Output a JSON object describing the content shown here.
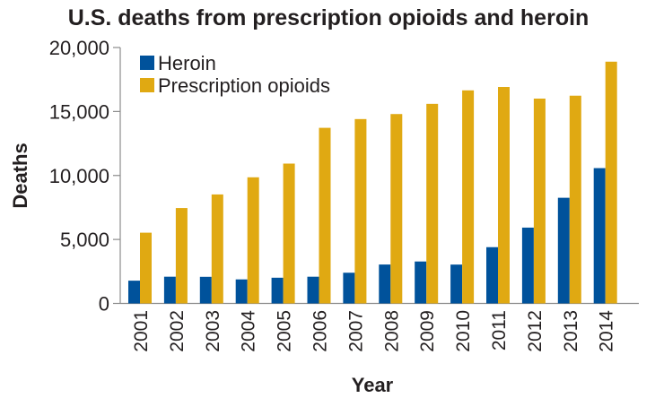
{
  "chart_data": {
    "type": "bar",
    "title": "U.S. deaths from prescription opioids and heroin",
    "xlabel": "Year",
    "ylabel": "Deaths",
    "ylim": [
      0,
      20000
    ],
    "yticks": [
      0,
      5000,
      10000,
      15000,
      20000
    ],
    "ytick_labels": [
      "0",
      "5,000",
      "10,000",
      "15,000",
      "20,000"
    ],
    "grid": false,
    "legend_position": "top-left",
    "categories": [
      "2001",
      "2002",
      "2003",
      "2004",
      "2005",
      "2006",
      "2007",
      "2008",
      "2009",
      "2010",
      "2011",
      "2012",
      "2013",
      "2014"
    ],
    "series": [
      {
        "name": "Heroin",
        "color": "#00529b",
        "values": [
          1779,
          2089,
          2080,
          1878,
          2009,
          2088,
          2399,
          3041,
          3278,
          3036,
          4397,
          5925,
          8257,
          10574
        ]
      },
      {
        "name": "Prescription opioids",
        "color": "#e0a912",
        "values": [
          5528,
          7456,
          8517,
          9857,
          10928,
          13723,
          14408,
          14800,
          15597,
          16651,
          16917,
          16007,
          16235,
          18893
        ]
      }
    ]
  }
}
